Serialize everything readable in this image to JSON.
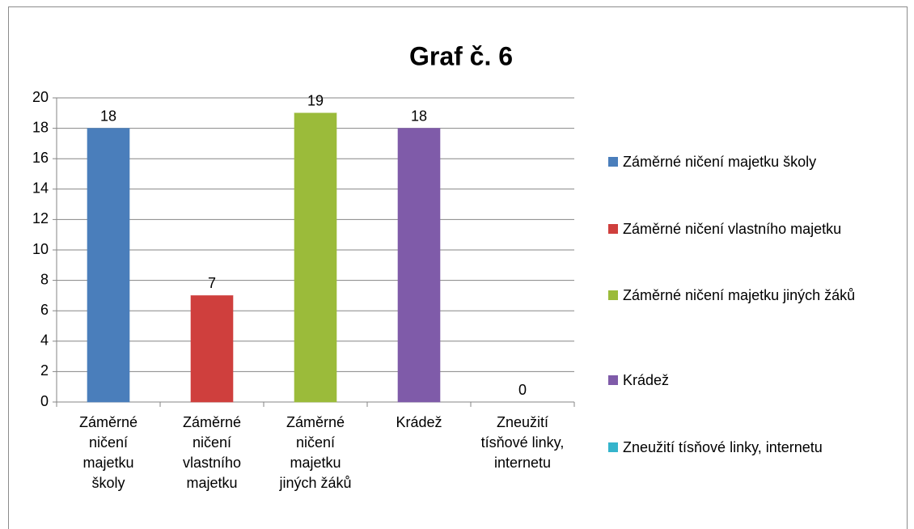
{
  "chart_data": {
    "type": "bar",
    "title": "Graf č. 6",
    "categories": [
      "Záměrné ničení majetku školy",
      "Záměrné ničení vlastního majetku",
      "Záměrné ničení majetku jiných žáků",
      "Krádež",
      "Zneužití tísňové linky, internetu"
    ],
    "values": [
      18,
      7,
      19,
      18,
      0
    ],
    "colors": [
      "#4a7ebb",
      "#cf3f3d",
      "#9bbb3a",
      "#7f5ba9",
      "#35b4cc"
    ],
    "ylim": [
      0,
      20
    ],
    "yticks": [
      0,
      2,
      4,
      6,
      8,
      10,
      12,
      14,
      16,
      18,
      20
    ],
    "grid": true,
    "legend": "right"
  }
}
